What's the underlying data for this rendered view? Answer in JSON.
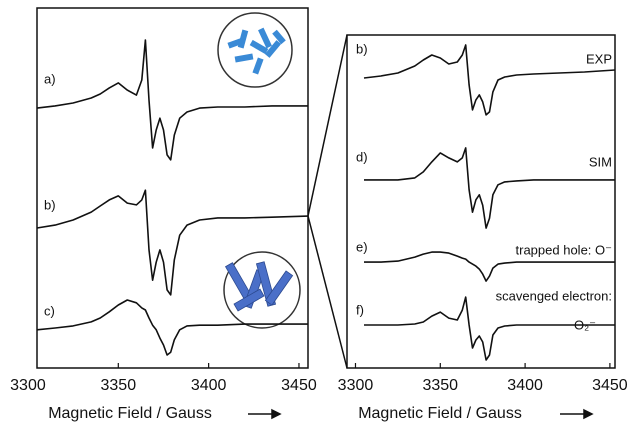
{
  "chart_data": [
    {
      "type": "line",
      "x": [
        3305,
        3315,
        3325,
        3335,
        3340,
        3345,
        3350,
        3355,
        3360,
        3363,
        3365,
        3367,
        3369,
        3371,
        3373,
        3375,
        3377,
        3379,
        3381,
        3384,
        3388,
        3395,
        3405,
        3420,
        3435,
        3455
      ],
      "xlim": [
        3305,
        3455
      ],
      "ylim": [
        0,
        100
      ],
      "xticks": [
        3300,
        3350,
        3400,
        3450
      ],
      "xlabel": "Magnetic Field / Gauss",
      "series": [
        {
          "name": "a)",
          "color": "#111111",
          "values": [
            72.2,
            72.8,
            73.6,
            75.0,
            76.1,
            77.8,
            79.2,
            77.2,
            75.8,
            80.0,
            91.1,
            74.4,
            61.1,
            66.1,
            69.4,
            66.1,
            59.2,
            57.8,
            64.7,
            69.4,
            71.1,
            72.2,
            72.5,
            72.5,
            72.8,
            72.8
          ]
        },
        {
          "name": "b)",
          "color": "#111111",
          "values": [
            38.9,
            39.7,
            41.1,
            43.3,
            45.0,
            46.7,
            47.8,
            45.8,
            45.3,
            46.7,
            49.4,
            32.8,
            24.4,
            29.4,
            32.8,
            29.4,
            21.7,
            20.3,
            30.0,
            36.9,
            39.7,
            41.1,
            41.7,
            41.7,
            41.9,
            42.2
          ]
        },
        {
          "name": "c)",
          "color": "#111111",
          "values": [
            10.6,
            11.1,
            11.7,
            12.8,
            13.9,
            15.6,
            17.5,
            18.9,
            18.1,
            16.7,
            16.1,
            13.9,
            11.9,
            10.6,
            8.3,
            6.4,
            3.6,
            4.4,
            7.8,
            10.6,
            11.7,
            11.9,
            11.9,
            12.2,
            12.2,
            12.2
          ]
        }
      ]
    },
    {
      "type": "line",
      "x": [
        3305,
        3315,
        3325,
        3335,
        3340,
        3345,
        3350,
        3355,
        3360,
        3363,
        3365,
        3367,
        3369,
        3371,
        3373,
        3375,
        3377,
        3379,
        3381,
        3384,
        3388,
        3395,
        3405,
        3420,
        3435,
        3453
      ],
      "xlim": [
        3295,
        3453
      ],
      "ylim": [
        0,
        100
      ],
      "xticks": [
        3300,
        3350,
        3400,
        3450
      ],
      "xlabel": "Magnetic Field / Gauss",
      "series": [
        {
          "name": "b)",
          "color": "#111111",
          "values": [
            87.1,
            87.7,
            88.6,
            90.7,
            92.5,
            94.0,
            93.1,
            91.3,
            91.9,
            94.0,
            97.0,
            85.0,
            77.5,
            80.5,
            82.0,
            79.9,
            76.0,
            76.9,
            82.9,
            86.5,
            87.4,
            88.0,
            88.3,
            88.6,
            88.9,
            89.5
          ]
        },
        {
          "name": "d)",
          "color": "#111111",
          "values": [
            56.5,
            56.5,
            56.5,
            57.1,
            58.9,
            61.9,
            64.6,
            63.1,
            61.9,
            63.1,
            66.1,
            53.5,
            46.8,
            50.5,
            52.0,
            48.9,
            42.0,
            45.0,
            52.0,
            55.0,
            55.9,
            56.2,
            56.5,
            56.5,
            56.5,
            56.5
          ]
        },
        {
          "name": "e)",
          "color": "#111111",
          "values": [
            31.8,
            31.8,
            32.1,
            33.3,
            34.2,
            34.8,
            34.8,
            34.5,
            33.6,
            33.0,
            32.7,
            31.8,
            31.2,
            30.6,
            29.7,
            28.2,
            26.1,
            27.6,
            30.0,
            31.2,
            31.5,
            31.8,
            31.8,
            31.8,
            31.8,
            31.8
          ]
        },
        {
          "name": "f)",
          "color": "#111111",
          "values": [
            12.9,
            12.9,
            12.9,
            13.2,
            13.8,
            15.6,
            16.8,
            15.0,
            14.4,
            17.4,
            21.3,
            12.9,
            6.0,
            8.4,
            9.6,
            7.8,
            2.4,
            3.9,
            9.9,
            12.0,
            12.6,
            12.9,
            12.9,
            12.9,
            12.9,
            12.9
          ]
        }
      ],
      "annotations": [
        "EXP",
        "SIM",
        "trapped hole: O⁻",
        "scavenged electron:",
        "O₂⁻"
      ]
    }
  ]
}
